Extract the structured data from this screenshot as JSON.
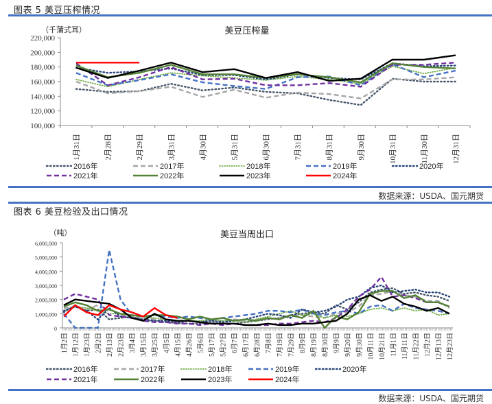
{
  "figure5": {
    "title": "图表 5  美豆压榨情况",
    "source": "数据来源：USDA、国元期货"
  },
  "figure6": {
    "title": "图表 6  美豆检验及出口情况",
    "source": "数据来源：USDA、国元期货"
  },
  "chart_data": [
    {
      "type": "line",
      "title": "美豆压榨量",
      "ylabel": "（千蒲式耳）",
      "xlabel": "",
      "ylim": [
        100000,
        220000
      ],
      "yticks": [
        "100,000",
        "120,000",
        "140,000",
        "160,000",
        "180,000",
        "200,000",
        "220,000"
      ],
      "grid": false,
      "legend_position": "bottom",
      "categories": [
        "1月31日",
        "2月28日",
        "2月29日",
        "3月31日",
        "4月30日",
        "5月31日",
        "6月30日",
        "7月31日",
        "8月31日",
        "9月30日",
        "10月31日",
        "11月30日",
        "12月31日"
      ],
      "series": [
        {
          "name": "2016年",
          "color": "#44546a",
          "style": "dotted",
          "values": [
            150000,
            146000,
            147000,
            157000,
            148000,
            152000,
            146000,
            144000,
            135000,
            128000,
            164000,
            160000,
            160000
          ]
        },
        {
          "name": "2017年",
          "color": "#a5a5a5",
          "style": "dashed",
          "values": [
            160000,
            144000,
            147000,
            153000,
            139000,
            149000,
            138000,
            145000,
            143000,
            137000,
            163000,
            163000,
            166000
          ]
        },
        {
          "name": "2018年",
          "color": "#70ad47",
          "style": "dotted-fine",
          "values": [
            163000,
            153000,
            163000,
            172000,
            168000,
            165000,
            162000,
            167000,
            163000,
            157000,
            181000,
            171000,
            179000
          ]
        },
        {
          "name": "2019年",
          "color": "#4472c4",
          "style": "dashed",
          "values": [
            172000,
            155000,
            162000,
            170000,
            159000,
            154000,
            150000,
            166000,
            167000,
            155000,
            184000,
            166000,
            175000
          ]
        },
        {
          "name": "2020年",
          "color": "#264478",
          "style": "dotted",
          "values": [
            179000,
            172000,
            174000,
            178000,
            169000,
            169000,
            163000,
            170000,
            165000,
            163000,
            185000,
            181000,
            182000
          ]
        },
        {
          "name": "2021年",
          "color": "#7030a0",
          "style": "dashed",
          "values": [
            185000,
            155000,
            166000,
            180000,
            163000,
            164000,
            155000,
            155000,
            158000,
            153000,
            183000,
            183000,
            186000
          ]
        },
        {
          "name": "2022年",
          "color": "#548235",
          "style": "solid",
          "values": [
            182000,
            166000,
            172000,
            183000,
            170000,
            170000,
            165000,
            170000,
            166000,
            159000,
            185000,
            180000,
            178000
          ]
        },
        {
          "name": "2023年",
          "color": "#000000",
          "style": "solid",
          "values": [
            179000,
            165000,
            175000,
            186000,
            173000,
            177000,
            165000,
            173000,
            161000,
            164000,
            190000,
            190000,
            196000
          ]
        },
        {
          "name": "2024年",
          "color": "#ff0000",
          "style": "solid",
          "values": [
            186000,
            186000,
            186000,
            null,
            null,
            null,
            null,
            null,
            null,
            null,
            null,
            null,
            null
          ]
        }
      ]
    },
    {
      "type": "line",
      "title": "美豆当周出口",
      "ylabel": "（吨）",
      "xlabel": "",
      "ylim": [
        0,
        6000000
      ],
      "yticks": [
        "0",
        "1,000,000",
        "2,000,000",
        "3,000,000",
        "4,000,000",
        "5,000,000",
        "6,000,000"
      ],
      "grid": false,
      "legend_position": "bottom",
      "categories": [
        "1月2日",
        "1月12日",
        "1月23日",
        "2月2日",
        "2月13日",
        "2月23日",
        "3月4日",
        "3月15日",
        "3月25日",
        "4月5日",
        "4月15日",
        "4月26日",
        "5月6日",
        "5月17日",
        "5月27日",
        "6月7日",
        "6月17日",
        "6月28日",
        "7月8日",
        "7月19日",
        "7月29日",
        "8月9日",
        "8月19日",
        "8月30日",
        "9月9日",
        "9月20日",
        "9月30日",
        "10月11日",
        "10月21日",
        "11月1日",
        "11月11日",
        "11月22日",
        "12月2日",
        "12月13日",
        "12月23日"
      ],
      "series": [
        {
          "name": "2016年",
          "color": "#44546a",
          "style": "dotted",
          "values": [
            1100000,
            1600000,
            1200000,
            1300000,
            600000,
            700000,
            800000,
            500000,
            500000,
            400000,
            350000,
            300000,
            300000,
            350000,
            300000,
            300000,
            400000,
            500000,
            600000,
            700000,
            900000,
            1000000,
            1100000,
            1000000,
            1600000,
            1300000,
            1800000,
            2500000,
            2700000,
            2800000,
            2400000,
            2500000,
            2300000,
            2200000,
            1900000
          ]
        },
        {
          "name": "2017年",
          "color": "#a5a5a5",
          "style": "dashed",
          "values": [
            1400000,
            1500000,
            1300000,
            1600000,
            1300000,
            900000,
            800000,
            700000,
            600000,
            500000,
            400000,
            500000,
            400000,
            500000,
            500000,
            600000,
            500000,
            600000,
            600000,
            700000,
            800000,
            900000,
            800000,
            700000,
            1000000,
            1100000,
            1500000,
            2300000,
            2400000,
            2600000,
            2300000,
            2200000,
            1900000,
            1900000,
            1400000
          ]
        },
        {
          "name": "2018年",
          "color": "#70ad47",
          "style": "dotted-fine",
          "values": [
            1200000,
            1500000,
            1400000,
            1200000,
            1000000,
            1000000,
            900000,
            800000,
            700000,
            600000,
            500000,
            500000,
            500000,
            600000,
            500000,
            500000,
            400000,
            600000,
            800000,
            1000000,
            1200000,
            900000,
            1000000,
            700000,
            900000,
            800000,
            1000000,
            1300000,
            1400000,
            1200000,
            1400000,
            1200000,
            1300000,
            900000,
            1000000
          ]
        },
        {
          "name": "2019年",
          "color": "#4472c4",
          "style": "dashed",
          "values": [
            1000000,
            0,
            0,
            0,
            5500000,
            2000000,
            900000,
            800000,
            900000,
            800000,
            700000,
            800000,
            700000,
            600000,
            700000,
            800000,
            900000,
            1000000,
            1200000,
            1200000,
            1100000,
            1300000,
            1000000,
            900000,
            1100000,
            1200000,
            1000000,
            1500000,
            1600000,
            1200000,
            1700000,
            1400000,
            1300000,
            1200000,
            1000000
          ]
        },
        {
          "name": "2020年",
          "color": "#264478",
          "style": "dotted",
          "values": [
            1200000,
            1500000,
            1200000,
            600000,
            1400000,
            800000,
            700000,
            600000,
            500000,
            500000,
            400000,
            500000,
            400000,
            500000,
            400000,
            500000,
            600000,
            800000,
            1000000,
            900000,
            700000,
            1300000,
            1100000,
            1200000,
            1500000,
            2000000,
            2200000,
            2800000,
            3000000,
            2500000,
            2600000,
            2700000,
            2500000,
            2500000,
            2200000
          ]
        },
        {
          "name": "2021年",
          "color": "#7030a0",
          "style": "dashed",
          "values": [
            2000000,
            2400000,
            2200000,
            2000000,
            900000,
            800000,
            700000,
            500000,
            400000,
            400000,
            300000,
            300000,
            200000,
            300000,
            200000,
            300000,
            200000,
            200000,
            200000,
            300000,
            300000,
            400000,
            500000,
            400000,
            700000,
            1300000,
            2200000,
            2700000,
            3600000,
            2200000,
            2300000,
            2100000,
            1800000,
            1800000,
            1500000
          ]
        },
        {
          "name": "2022年",
          "color": "#548235",
          "style": "solid",
          "values": [
            1500000,
            1800000,
            1600000,
            1200000,
            1300000,
            1000000,
            900000,
            800000,
            900000,
            900000,
            800000,
            600000,
            800000,
            600000,
            700000,
            500000,
            600000,
            500000,
            700000,
            600000,
            900000,
            700000,
            1200000,
            0,
            800000,
            600000,
            1100000,
            2400000,
            2600000,
            2600000,
            2100000,
            2300000,
            1800000,
            1800000,
            1500000
          ]
        },
        {
          "name": "2023年",
          "color": "#000000",
          "style": "solid",
          "values": [
            1600000,
            2000000,
            1900000,
            1800000,
            1700000,
            1300000,
            700000,
            500000,
            1000000,
            600000,
            500000,
            500000,
            400000,
            300000,
            300000,
            300000,
            200000,
            200000,
            300000,
            200000,
            200000,
            300000,
            300000,
            400000,
            500000,
            1000000,
            2000000,
            2300000,
            1900000,
            2200000,
            1700000,
            1500000,
            1200000,
            1400000,
            1000000
          ]
        },
        {
          "name": "2024年",
          "color": "#ff0000",
          "style": "solid",
          "values": [
            800000,
            1600000,
            1100000,
            900000,
            1600000,
            1300000,
            1100000,
            800000,
            1400000,
            900000,
            700000,
            null,
            null,
            null,
            null,
            null,
            null,
            null,
            null,
            null,
            null,
            null,
            null,
            null,
            null,
            null,
            null,
            null,
            null,
            null,
            null,
            null,
            null,
            null,
            null
          ]
        }
      ]
    }
  ]
}
